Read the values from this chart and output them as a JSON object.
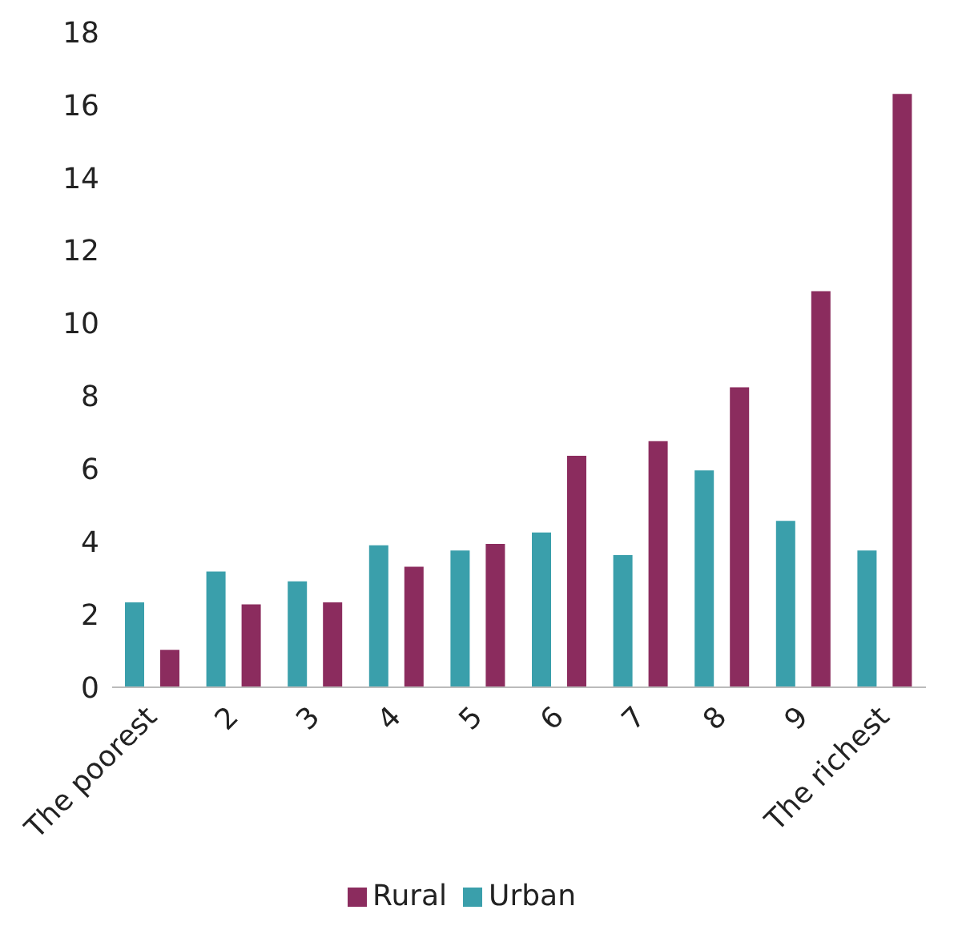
{
  "chart_data": {
    "type": "bar",
    "categories": [
      "The poorest",
      "2",
      "3",
      "4",
      "5",
      "6",
      "7",
      "8",
      "9",
      "The richest"
    ],
    "series": [
      {
        "name": "Urban",
        "color": "#3a9fab",
        "values": [
          2.33,
          3.18,
          2.91,
          3.9,
          3.76,
          4.25,
          3.63,
          5.96,
          4.57,
          3.76
        ]
      },
      {
        "name": "Rural",
        "color": "#8b2c5e",
        "values": [
          1.03,
          2.28,
          2.33,
          3.31,
          3.94,
          6.36,
          6.76,
          8.24,
          10.88,
          16.3
        ]
      }
    ],
    "ylim": [
      0,
      18
    ],
    "yticks": [
      0,
      2,
      4,
      6,
      8,
      10,
      12,
      14,
      16,
      18
    ],
    "grid": false,
    "legend": "bottom"
  }
}
